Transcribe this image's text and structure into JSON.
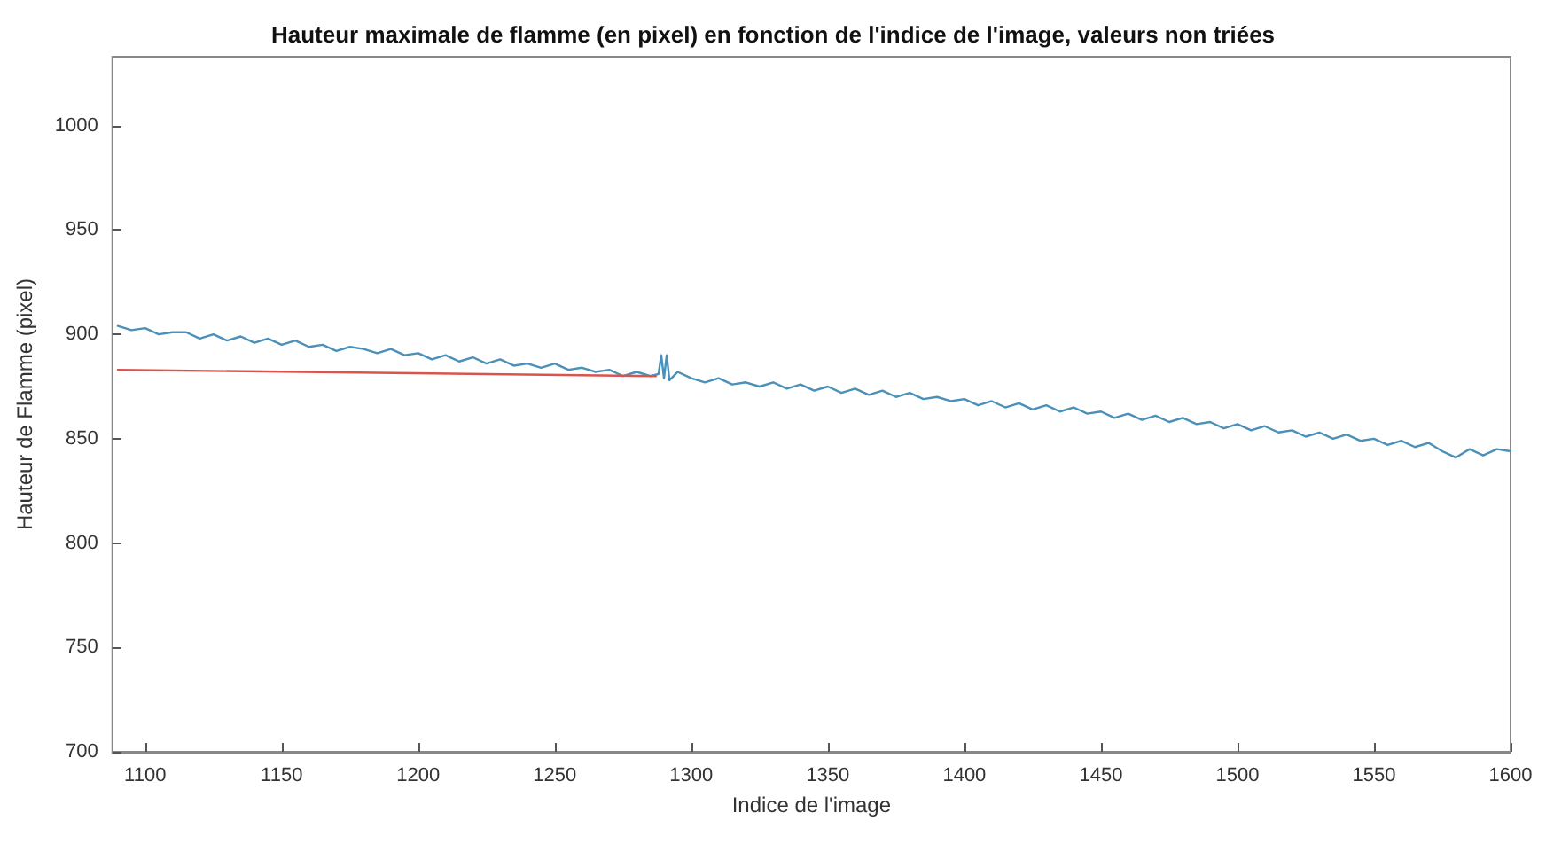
{
  "chart_data": {
    "type": "line",
    "title": "Hauteur maximale de flamme (en pixel) en fonction de l'indice de l'image, valeurs non triées",
    "xlabel": "Indice de l'image",
    "ylabel": "Hauteur de Flamme (pixel)",
    "xlim": [
      1088,
      1600
    ],
    "xticks": [
      1100,
      1150,
      1200,
      1250,
      1300,
      1350,
      1400,
      1450,
      1500,
      1550,
      1600
    ],
    "ylim": [
      700,
      1033
    ],
    "yticks": [
      700,
      750,
      800,
      850,
      900,
      950,
      1000
    ],
    "grid": false,
    "marker": "none",
    "line_style": "solid",
    "series": [
      {
        "color": "#4a90b8",
        "x": [
          1090,
          1095,
          1100,
          1105,
          1110,
          1115,
          1120,
          1125,
          1130,
          1135,
          1140,
          1145,
          1150,
          1155,
          1160,
          1165,
          1170,
          1175,
          1180,
          1185,
          1190,
          1195,
          1200,
          1205,
          1210,
          1215,
          1220,
          1225,
          1230,
          1235,
          1240,
          1245,
          1250,
          1255,
          1260,
          1265,
          1270,
          1275,
          1280,
          1285,
          1288,
          1289,
          1290,
          1291,
          1292,
          1295,
          1300,
          1305,
          1310,
          1315,
          1320,
          1325,
          1330,
          1335,
          1340,
          1345,
          1350,
          1355,
          1360,
          1365,
          1370,
          1375,
          1380,
          1385,
          1390,
          1395,
          1400,
          1405,
          1410,
          1415,
          1420,
          1425,
          1430,
          1435,
          1440,
          1445,
          1450,
          1455,
          1460,
          1465,
          1470,
          1475,
          1480,
          1485,
          1490,
          1495,
          1500,
          1505,
          1510,
          1515,
          1520,
          1525,
          1530,
          1535,
          1540,
          1545,
          1550,
          1555,
          1560,
          1565,
          1570,
          1575,
          1580,
          1585,
          1590,
          1595,
          1600
        ],
        "values": [
          904,
          902,
          903,
          900,
          901,
          901,
          898,
          900,
          897,
          899,
          896,
          898,
          895,
          897,
          894,
          895,
          892,
          894,
          893,
          891,
          893,
          890,
          891,
          888,
          890,
          887,
          889,
          886,
          888,
          885,
          886,
          884,
          886,
          883,
          884,
          882,
          883,
          880,
          882,
          880,
          881,
          890,
          879,
          890,
          878,
          882,
          879,
          877,
          879,
          876,
          877,
          875,
          877,
          874,
          876,
          873,
          875,
          872,
          874,
          871,
          873,
          870,
          872,
          869,
          870,
          868,
          869,
          866,
          868,
          865,
          867,
          864,
          866,
          863,
          865,
          862,
          863,
          860,
          862,
          859,
          861,
          858,
          860,
          857,
          858,
          855,
          857,
          854,
          856,
          853,
          854,
          851,
          853,
          850,
          852,
          849,
          850,
          847,
          849,
          846,
          848,
          844,
          841,
          845,
          842,
          845,
          844
        ]
      },
      {
        "color": "#d9534f",
        "x": [
          1090,
          1287
        ],
        "values": [
          883,
          880
        ]
      }
    ]
  }
}
